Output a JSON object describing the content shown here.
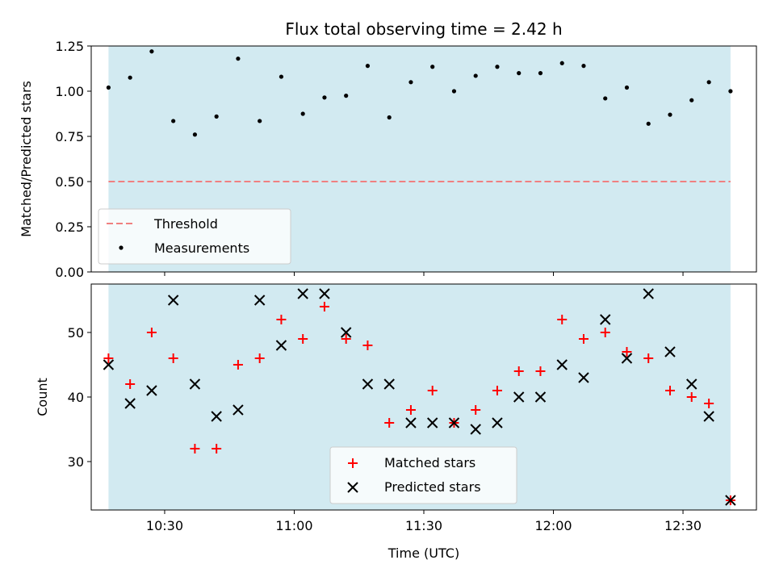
{
  "chart_data": [
    {
      "type": "scatter",
      "title": "Flux total observing time = 2.42 h",
      "ylabel": "Matched/Predicted stars",
      "ylim": [
        0,
        1.25
      ],
      "yticks": [
        "0.00",
        "0.25",
        "0.50",
        "0.75",
        "1.00",
        "1.25"
      ],
      "xlim": [
        "10:13",
        "12:47"
      ],
      "shaded_span": [
        "10:17",
        "12:41"
      ],
      "shade_color": "#add8e6",
      "threshold": {
        "name": "Threshold",
        "y": 0.5,
        "color": "#f08080",
        "style": "dashed"
      },
      "series": [
        {
          "name": "Measurements",
          "marker": "dot",
          "color": "#000000",
          "x": [
            "10:17",
            "10:22",
            "10:27",
            "10:32",
            "10:37",
            "10:42",
            "10:47",
            "10:52",
            "10:57",
            "11:02",
            "11:07",
            "11:12",
            "11:17",
            "11:22",
            "11:27",
            "11:32",
            "11:37",
            "11:42",
            "11:47",
            "11:52",
            "11:57",
            "12:02",
            "12:07",
            "12:12",
            "12:17",
            "12:22",
            "12:27",
            "12:32",
            "12:36",
            "12:41"
          ],
          "y": [
            1.02,
            1.075,
            1.22,
            0.835,
            0.76,
            0.86,
            1.18,
            0.835,
            1.08,
            0.875,
            0.965,
            0.975,
            1.14,
            0.855,
            1.05,
            1.135,
            1.0,
            1.085,
            1.135,
            1.1,
            1.1,
            1.155,
            1.14,
            0.96,
            1.02,
            0.82,
            0.87,
            0.95,
            1.05,
            1.0
          ]
        }
      ],
      "legend_loc": "lower-left"
    },
    {
      "type": "scatter",
      "xlabel": "Time (UTC)",
      "ylabel": "Count",
      "ylim": [
        22.5,
        57.5
      ],
      "yticks": [
        "30",
        "40",
        "50"
      ],
      "xticks": [
        "10:30",
        "11:00",
        "11:30",
        "12:00",
        "12:30"
      ],
      "xlim": [
        "10:13",
        "12:47"
      ],
      "shaded_span": [
        "10:17",
        "12:41"
      ],
      "shade_color": "#add8e6",
      "series": [
        {
          "name": "Matched stars",
          "marker": "plus",
          "color": "#ff0000",
          "x": [
            "10:17",
            "10:22",
            "10:27",
            "10:32",
            "10:37",
            "10:42",
            "10:47",
            "10:52",
            "10:57",
            "11:02",
            "11:07",
            "11:12",
            "11:17",
            "11:22",
            "11:27",
            "11:32",
            "11:37",
            "11:42",
            "11:47",
            "11:52",
            "11:57",
            "12:02",
            "12:07",
            "12:12",
            "12:17",
            "12:22",
            "12:27",
            "12:32",
            "12:36",
            "12:41"
          ],
          "y": [
            46,
            42,
            50,
            46,
            32,
            32,
            45,
            46,
            52,
            49,
            54,
            49,
            48,
            36,
            38,
            41,
            36,
            38,
            41,
            44,
            44,
            52,
            49,
            50,
            47,
            46,
            41,
            40,
            39,
            24
          ]
        },
        {
          "name": "Predicted stars",
          "marker": "x",
          "color": "#000000",
          "x": [
            "10:17",
            "10:22",
            "10:27",
            "10:32",
            "10:37",
            "10:42",
            "10:47",
            "10:52",
            "10:57",
            "11:02",
            "11:07",
            "11:12",
            "11:17",
            "11:22",
            "11:27",
            "11:32",
            "11:37",
            "11:42",
            "11:47",
            "11:52",
            "11:57",
            "12:02",
            "12:07",
            "12:12",
            "12:17",
            "12:22",
            "12:27",
            "12:32",
            "12:36",
            "12:41"
          ],
          "y": [
            45,
            39,
            41,
            55,
            42,
            37,
            38,
            55,
            48,
            56,
            56,
            50,
            42,
            42,
            36,
            36,
            36,
            35,
            36,
            40,
            40,
            45,
            43,
            52,
            46,
            56,
            47,
            42,
            37,
            24
          ]
        }
      ],
      "legend_loc": "lower-center"
    }
  ]
}
